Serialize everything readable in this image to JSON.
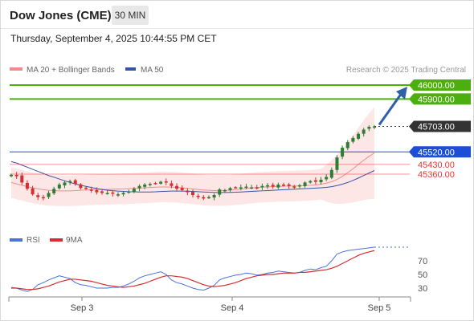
{
  "header": {
    "title": "Dow Jones (CME)",
    "timeframe": "30 MIN"
  },
  "datetime": "Thursday, September 4, 2025 10:44:55 PM CET",
  "legend": {
    "bollinger": "MA 20 + Bollinger Bands",
    "ma50": "MA 50",
    "copyright": "Research © 2025 Trading Central"
  },
  "rsi_legend": {
    "rsi": "RSI",
    "ma9": "9MA"
  },
  "colors": {
    "bull": "#2e7d32",
    "bear": "#d32f2f",
    "target": "#4caf10",
    "support": "#1d4ed8",
    "resist": "#e53935",
    "ma20": "#f08c8c",
    "ma50": "#3355a8",
    "band": "#fde2e2",
    "arrow": "#2e5fa8",
    "rsi": "#4a72d8",
    "rsi_ma": "#d32f2f"
  },
  "chart_data": [
    {
      "type": "candlestick",
      "x_axis": {
        "labels": [
          "Sep 3",
          "Sep 4",
          "Sep 5"
        ]
      },
      "price_levels": [
        {
          "value": 46000,
          "label": "46000.00",
          "kind": "target"
        },
        {
          "value": 45900,
          "label": "45900.00",
          "kind": "target"
        },
        {
          "value": 45703,
          "label": "45703.00",
          "kind": "last"
        },
        {
          "value": 45520,
          "label": "45520.00",
          "kind": "pivot"
        },
        {
          "value": 45430,
          "label": "45430.00",
          "kind": "support"
        },
        {
          "value": 45360,
          "label": "45360.00",
          "kind": "support"
        }
      ],
      "closes": [
        45355,
        45345,
        45300,
        45255,
        45215,
        45195,
        45190,
        45225,
        45255,
        45285,
        45300,
        45310,
        45290,
        45260,
        45255,
        45245,
        45230,
        45225,
        45225,
        45220,
        45215,
        45225,
        45235,
        45255,
        45275,
        45285,
        45290,
        45295,
        45305,
        45300,
        45275,
        45255,
        45245,
        45230,
        45210,
        45195,
        45185,
        45195,
        45210,
        45250,
        45245,
        45260,
        45265,
        45265,
        45270,
        45265,
        45260,
        45275,
        45280,
        45270,
        45285,
        45280,
        45275,
        45270,
        45280,
        45300,
        45310,
        45305,
        45320,
        45340,
        45390,
        45480,
        45550,
        45590,
        45620,
        45650,
        45680,
        45700,
        45703
      ],
      "ma20": [
        45300,
        45290,
        45280,
        45270,
        45262,
        45255,
        45248,
        45244,
        45242,
        45240,
        45240,
        45240,
        45242,
        45244,
        45246,
        45248,
        45250,
        45250,
        45250,
        45252,
        45253,
        45254,
        45256,
        45258,
        45260,
        45262,
        45264,
        45266,
        45268,
        45268,
        45267,
        45265,
        45262,
        45258,
        45254,
        45250,
        45246,
        45244,
        45242,
        45242,
        45243,
        45245,
        45248,
        45252,
        45256,
        45260,
        45264,
        45266,
        45268,
        45270,
        45272,
        45273,
        45274,
        45275,
        45276,
        45278,
        45280,
        45283,
        45288,
        45295,
        45306,
        45322,
        45344,
        45370,
        45398,
        45430,
        45460,
        45488,
        45512
      ],
      "ma50": [
        45450,
        45440,
        45425,
        45410,
        45395,
        45380,
        45365,
        45350,
        45338,
        45325,
        45312,
        45300,
        45290,
        45280,
        45272,
        45264,
        45257,
        45250,
        45245,
        45241,
        45238,
        45236,
        45234,
        45233,
        45232,
        45232,
        45232,
        45233,
        45235,
        45237,
        45238,
        45238,
        45238,
        45237,
        45236,
        45234,
        45232,
        45230,
        45229,
        45228,
        45228,
        45229,
        45230,
        45232,
        45234,
        45236,
        45238,
        45240,
        45242,
        45244,
        45246,
        45248,
        45250,
        45252,
        45254,
        45256,
        45258,
        45260,
        45262,
        45265,
        45270,
        45278,
        45288,
        45300,
        45315,
        45332,
        45350,
        45368,
        45386
      ],
      "rsi": [
        31,
        30,
        27,
        25,
        28,
        35,
        38,
        42,
        45,
        48,
        46,
        44,
        38,
        35,
        34,
        32,
        30,
        30,
        30,
        31,
        31,
        33,
        36,
        40,
        45,
        48,
        50,
        52,
        54,
        50,
        42,
        38,
        36,
        33,
        30,
        28,
        27,
        30,
        34,
        42,
        45,
        47,
        49,
        50,
        52,
        51,
        49,
        50,
        52,
        53,
        55,
        54,
        53,
        52,
        53,
        56,
        58,
        57,
        60,
        62,
        70,
        80,
        83,
        85,
        86,
        87,
        88,
        89,
        90
      ],
      "rsi_ma": [
        30,
        30,
        29,
        28,
        28,
        29,
        31,
        33,
        36,
        39,
        41,
        43,
        43,
        42,
        41,
        40,
        38,
        36,
        34,
        33,
        32,
        31,
        32,
        33,
        35,
        37,
        40,
        43,
        46,
        48,
        48,
        47,
        46,
        44,
        41,
        38,
        35,
        33,
        32,
        33,
        34,
        36,
        38,
        41,
        44,
        46,
        48,
        49,
        50,
        50,
        51,
        52,
        52,
        52,
        53,
        53,
        54,
        55,
        56,
        57,
        59,
        62,
        66,
        70,
        74,
        78,
        81,
        83,
        85
      ],
      "rsi_levels": [
        70,
        50,
        30
      ]
    }
  ]
}
